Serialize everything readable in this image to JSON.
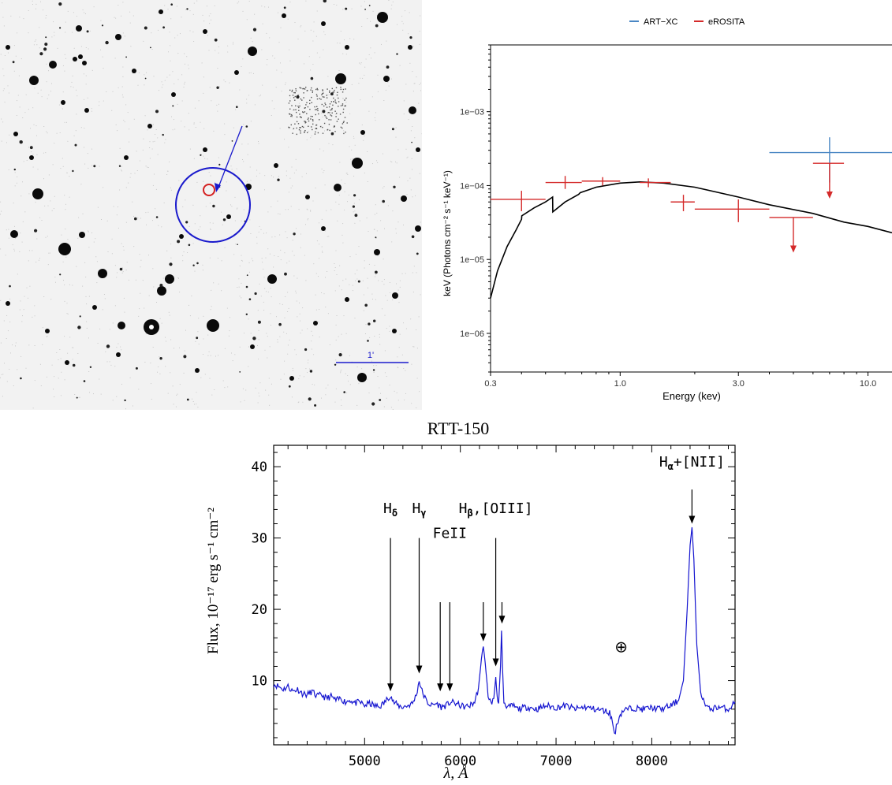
{
  "sky_image": {
    "scale_bar_label": "1'",
    "colors": {
      "background": "#f2f2f2",
      "star": "#0a0a0a",
      "source_circle": "#1a1acc",
      "optical_counterpart": "#d42020",
      "arrow": "#1a1acc",
      "scale_bar": "#1a1acc"
    }
  },
  "chart_data": [
    {
      "type": "scatter",
      "panel": "xray-spectrum",
      "xlabel": "Energy (kev)",
      "ylabel": "keV (Photons cm⁻² s⁻¹ keV⁻¹)",
      "xscale": "log",
      "yscale": "log",
      "xlim": [
        0.3,
        12.5
      ],
      "ylim": [
        3e-07,
        0.008
      ],
      "xticks": [
        {
          "v": 0.3,
          "label": "0.3"
        },
        {
          "v": 1.0,
          "label": "1.0"
        },
        {
          "v": 3.0,
          "label": "3.0"
        },
        {
          "v": 10.0,
          "label": "10.0"
        }
      ],
      "yticks": [
        {
          "v": 1e-06,
          "label": "1e−06"
        },
        {
          "v": 1e-05,
          "label": "1e−05"
        },
        {
          "v": 0.0001,
          "label": "1e−04"
        },
        {
          "v": 0.001,
          "label": "1e−03"
        }
      ],
      "legend": {
        "placement": "top-center"
      },
      "series": [
        {
          "name": "ART−XC",
          "color": "#4a87c4",
          "points": [
            {
              "x": 7.0,
              "xlo": 4.0,
              "xhi": 12.5,
              "y": 0.00028,
              "ylo": 0.00011,
              "yhi": 0.00045
            }
          ]
        },
        {
          "name": "eROSITA",
          "color": "#d42a2a",
          "points": [
            {
              "x": 0.4,
              "xlo": 0.3,
              "xhi": 0.5,
              "y": 6.5e-05,
              "ylo": 4.5e-05,
              "yhi": 8.5e-05
            },
            {
              "x": 0.6,
              "xlo": 0.5,
              "xhi": 0.7,
              "y": 0.00011,
              "ylo": 9e-05,
              "yhi": 0.000135
            },
            {
              "x": 0.85,
              "xlo": 0.7,
              "xhi": 1.0,
              "y": 0.000115,
              "ylo": 0.0001,
              "yhi": 0.00013
            },
            {
              "x": 1.3,
              "xlo": 1.2,
              "xhi": 1.6,
              "y": 0.00011,
              "ylo": 9.5e-05,
              "yhi": 0.000125
            },
            {
              "x": 1.8,
              "xlo": 1.6,
              "xhi": 2.0,
              "y": 6e-05,
              "ylo": 4.5e-05,
              "yhi": 7.5e-05
            },
            {
              "x": 3.0,
              "xlo": 2.0,
              "xhi": 4.0,
              "y": 4.8e-05,
              "ylo": 3.2e-05,
              "yhi": 6.5e-05
            }
          ],
          "upper_limits": [
            {
              "x": 5.0,
              "xlo": 4.0,
              "xhi": 6.0,
              "y": 3.7e-05,
              "arrow_to": 1.3e-05
            },
            {
              "x": 7.0,
              "xlo": 6.0,
              "xhi": 8.0,
              "y": 0.0002,
              "arrow_to": 7e-05
            }
          ]
        },
        {
          "name": "model",
          "color": "#000000",
          "curve": [
            [
              0.3,
              3e-06
            ],
            [
              0.32,
              7e-06
            ],
            [
              0.35,
              1.5e-05
            ],
            [
              0.38,
              2.5e-05
            ],
            [
              0.4,
              3.5e-05
            ],
            [
              0.401,
              3.9e-05
            ],
            [
              0.45,
              5e-05
            ],
            [
              0.5,
              6e-05
            ],
            [
              0.534,
              7e-05
            ],
            [
              0.535,
              4.4e-05
            ],
            [
              0.6,
              6e-05
            ],
            [
              0.68,
              7.6e-05
            ],
            [
              0.69,
              8e-05
            ],
            [
              0.75,
              8.8e-05
            ],
            [
              0.8,
              9.5e-05
            ],
            [
              1.0,
              0.000108
            ],
            [
              1.2,
              0.000112
            ],
            [
              1.5,
              0.000108
            ],
            [
              2.0,
              9.5e-05
            ],
            [
              3.0,
              7e-05
            ],
            [
              4.0,
              5.5e-05
            ],
            [
              6.0,
              4.2e-05
            ],
            [
              8.0,
              3.2e-05
            ],
            [
              10.0,
              2.8e-05
            ],
            [
              12.5,
              2.3e-05
            ]
          ]
        }
      ]
    },
    {
      "type": "line",
      "panel": "optical-spectrum",
      "title": "RTT-150",
      "xlabel": "λ, Å",
      "ylabel": "Flux, 10⁻¹⁷ erg s⁻¹ cm⁻²",
      "xlim": [
        4050,
        8870
      ],
      "ylim": [
        1,
        43
      ],
      "xticks": [
        5000,
        6000,
        7000,
        8000
      ],
      "yticks": [
        10,
        20,
        30,
        40
      ],
      "series": [
        {
          "name": "spectrum",
          "color": "#1515d0",
          "points": [
            [
              4050,
              9.5
            ],
            [
              4100,
              9.2
            ],
            [
              4150,
              8.8
            ],
            [
              4200,
              9.2
            ],
            [
              4250,
              8.5
            ],
            [
              4300,
              8.8
            ],
            [
              4350,
              8.2
            ],
            [
              4400,
              8.0
            ],
            [
              4450,
              8.5
            ],
            [
              4500,
              7.8
            ],
            [
              4550,
              8.0
            ],
            [
              4600,
              7.5
            ],
            [
              4650,
              7.8
            ],
            [
              4700,
              7.2
            ],
            [
              4750,
              7.5
            ],
            [
              4800,
              7.0
            ],
            [
              4850,
              7.3
            ],
            [
              4900,
              6.8
            ],
            [
              4950,
              7.0
            ],
            [
              5000,
              6.5
            ],
            [
              5050,
              6.8
            ],
            [
              5100,
              6.5
            ],
            [
              5150,
              6.3
            ],
            [
              5200,
              6.8
            ],
            [
              5240,
              7.5
            ],
            [
              5270,
              8.0
            ],
            [
              5300,
              7.0
            ],
            [
              5350,
              6.5
            ],
            [
              5400,
              6.3
            ],
            [
              5450,
              6.5
            ],
            [
              5500,
              6.8
            ],
            [
              5540,
              8.0
            ],
            [
              5570,
              10.0
            ],
            [
              5600,
              8.5
            ],
            [
              5650,
              7.0
            ],
            [
              5700,
              6.5
            ],
            [
              5750,
              6.8
            ],
            [
              5800,
              6.3
            ],
            [
              5850,
              6.5
            ],
            [
              5900,
              7.0
            ],
            [
              5950,
              6.8
            ],
            [
              6000,
              6.5
            ],
            [
              6050,
              6.3
            ],
            [
              6100,
              6.5
            ],
            [
              6150,
              7.0
            ],
            [
              6190,
              9.0
            ],
            [
              6220,
              13.0
            ],
            [
              6240,
              14.5
            ],
            [
              6260,
              12.5
            ],
            [
              6290,
              8.0
            ],
            [
              6320,
              6.8
            ],
            [
              6350,
              7.5
            ],
            [
              6370,
              10.5
            ],
            [
              6385,
              7.5
            ],
            [
              6400,
              6.8
            ],
            [
              6420,
              12.0
            ],
            [
              6430,
              17.0
            ],
            [
              6440,
              12.0
            ],
            [
              6455,
              7.0
            ],
            [
              6500,
              6.2
            ],
            [
              6550,
              6.5
            ],
            [
              6600,
              6.0
            ],
            [
              6700,
              6.3
            ],
            [
              6800,
              6.0
            ],
            [
              6900,
              6.5
            ],
            [
              7000,
              6.2
            ],
            [
              7100,
              6.5
            ],
            [
              7200,
              6.0
            ],
            [
              7300,
              6.3
            ],
            [
              7400,
              6.0
            ],
            [
              7500,
              5.8
            ],
            [
              7560,
              5.5
            ],
            [
              7590,
              4.2
            ],
            [
              7610,
              2.5
            ],
            [
              7630,
              3.5
            ],
            [
              7660,
              5.0
            ],
            [
              7700,
              5.8
            ],
            [
              7800,
              6.2
            ],
            [
              7900,
              6.0
            ],
            [
              8000,
              6.2
            ],
            [
              8100,
              6.0
            ],
            [
              8200,
              6.5
            ],
            [
              8280,
              7.2
            ],
            [
              8330,
              10.0
            ],
            [
              8370,
              20.0
            ],
            [
              8400,
              29.0
            ],
            [
              8420,
              31.5
            ],
            [
              8440,
              27.0
            ],
            [
              8470,
              15.0
            ],
            [
              8510,
              8.5
            ],
            [
              8560,
              6.5
            ],
            [
              8600,
              6.0
            ],
            [
              8700,
              6.3
            ],
            [
              8800,
              6.0
            ],
            [
              8870,
              7.0
            ]
          ]
        }
      ],
      "annotations": [
        {
          "label_main": "H",
          "label_sub": "δ",
          "x": 5270,
          "label_y": 33.5,
          "arrow_from": 30.0,
          "arrow_to": 8.5
        },
        {
          "label_main": "H",
          "label_sub": "γ",
          "x": 5570,
          "label_y": 33.5,
          "arrow_from": 30.0,
          "arrow_to": 11.0
        },
        {
          "label_main": "FeII",
          "label_sub": "",
          "x": 5890,
          "label_y": 30.0,
          "arrow_from": 21.0,
          "arrow_to": 8.5
        },
        {
          "label_main": "H",
          "label_sub": "β",
          "label_rest": ",[OIII]",
          "x": 6370,
          "label_y": 33.5,
          "arrow_from": 30.0,
          "arrow_to": 12.0
        },
        {
          "label_main": "H",
          "label_sub": "α",
          "label_rest": "+[NII]",
          "x": 8420,
          "label_y": 40.0,
          "arrow_from": 36.8,
          "arrow_to": 32.0
        }
      ],
      "extra_arrows": [
        {
          "x": 5790,
          "arrow_from": 21.0,
          "arrow_to": 8.5
        },
        {
          "x": 6240,
          "arrow_from": 21.0,
          "arrow_to": 15.5
        },
        {
          "x": 6435,
          "arrow_from": 21.0,
          "arrow_to": 18.0
        }
      ],
      "telluric": {
        "symbol": "⊕",
        "x": 7680,
        "y": 14.0
      }
    }
  ]
}
